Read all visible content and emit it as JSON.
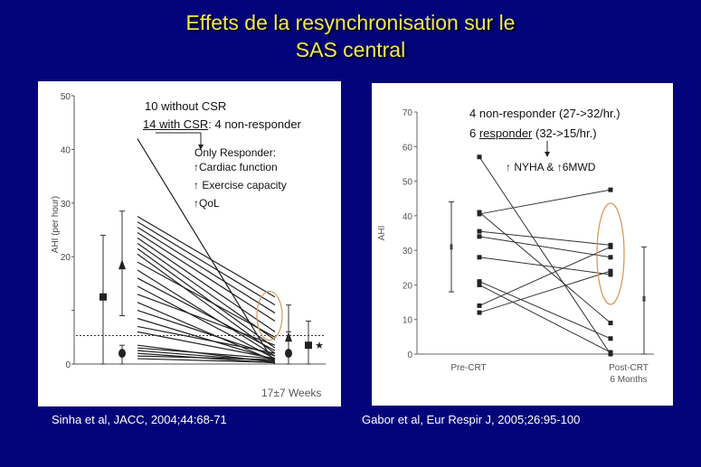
{
  "title_line1": "Effets de la resynchronisation sur le",
  "title_line2": "SAS central",
  "left": {
    "citation": "Sinha et al, JACC, 2004;44:68-71",
    "annotation": {
      "line1": "10 without CSR",
      "line2_underlined": "14 with CSR",
      "line2_rest": ": 4 non-responder",
      "only_responder": "Only Responder:",
      "items": [
        "Cardiac function",
        "Exercise capacity",
        "QoL"
      ],
      "arrow_glyph": "↑"
    },
    "footer": "17±7 Weeks",
    "colors": {
      "lines": "#222222",
      "highlight_ellipse": "#d89a5a"
    }
  },
  "right": {
    "citation": "Gabor et al, Eur Respir J, 2005;26:95-100",
    "annotation": {
      "line1": "4 non-responder (27->32/hr.)",
      "line2_prefix": "6 ",
      "line2_underlined": "responder",
      "line2_rest": " (32->15/hr.)",
      "benefit": "NYHA & ",
      "benefit2": "6MWD",
      "arrow_glyph": "↑"
    },
    "colors": {
      "lines": "#333333",
      "highlight_ellipse": "#d89a5a"
    }
  },
  "chart_data": [
    {
      "type": "line",
      "ylabel": "AHI (per hour)",
      "ylim": [
        0,
        50
      ],
      "yticks": [
        "50",
        "40",
        "30",
        "20",
        "",
        "0"
      ],
      "ytick_values": [
        50,
        40,
        30,
        20,
        10,
        0
      ],
      "reference_line": 5.3,
      "baseline_summary": [
        {
          "marker": "square",
          "value": 12.5,
          "low": 0,
          "high": 24
        },
        {
          "marker": "triangle",
          "value": 18.5,
          "low": 9,
          "high": 28.5
        },
        {
          "marker": "circle",
          "value": 2,
          "low": 0,
          "high": 3.5
        }
      ],
      "followup_summary": [
        {
          "marker": "triangle",
          "value": 5,
          "low": 0,
          "high": 11
        },
        {
          "marker": "circle",
          "value": 2,
          "low": 0,
          "high": 6
        },
        {
          "marker": "square",
          "value": 3.5,
          "low": 0,
          "high": 8
        },
        {
          "marker": "star",
          "value": 3.5
        }
      ],
      "series": [
        {
          "values": [
            42,
            0
          ]
        },
        {
          "values": [
            27.5,
            12.5
          ]
        },
        {
          "values": [
            26.5,
            11
          ]
        },
        {
          "values": [
            25.5,
            9.5
          ]
        },
        {
          "values": [
            24.5,
            8
          ]
        },
        {
          "values": [
            23.5,
            6
          ]
        },
        {
          "values": [
            22.5,
            4.5
          ]
        },
        {
          "values": [
            21.5,
            3
          ]
        },
        {
          "values": [
            20.5,
            2
          ]
        },
        {
          "values": [
            19,
            5
          ]
        },
        {
          "values": [
            17.5,
            1.5
          ]
        },
        {
          "values": [
            16,
            2.5
          ]
        },
        {
          "values": [
            14.5,
            1
          ]
        },
        {
          "values": [
            13,
            3.5
          ]
        },
        {
          "values": [
            11.5,
            0.5
          ]
        },
        {
          "values": [
            10,
            1.5
          ]
        },
        {
          "values": [
            8.5,
            0.8
          ]
        },
        {
          "values": [
            7,
            2
          ]
        },
        {
          "values": [
            6,
            1
          ]
        },
        {
          "values": [
            3.5,
            0.3
          ]
        },
        {
          "values": [
            3,
            1
          ]
        },
        {
          "values": [
            2.5,
            0.5
          ]
        },
        {
          "values": [
            2,
            0.2
          ]
        },
        {
          "values": [
            1.5,
            0.8
          ]
        },
        {
          "values": [
            1,
            0.3
          ]
        }
      ]
    },
    {
      "type": "line",
      "ylabel": "AHI",
      "ylim": [
        0,
        70
      ],
      "yticks": [
        "70",
        "60",
        "50",
        "40",
        "30",
        "20",
        "10",
        "0"
      ],
      "ytick_values": [
        70,
        60,
        50,
        40,
        30,
        20,
        10,
        0
      ],
      "categories": [
        "Pre-CRT",
        "Post-CRT\n6 Months"
      ],
      "category_labels": [
        "Pre-CRT",
        "Post-CRT",
        "6 Months"
      ],
      "pre_summary": {
        "value": 31,
        "low": 18,
        "high": 44
      },
      "post_summary": {
        "value": 16,
        "low": 0,
        "high": 31
      },
      "series": [
        {
          "values": [
            57,
            0
          ]
        },
        {
          "values": [
            41,
            9
          ]
        },
        {
          "values": [
            40.5,
            47.5
          ]
        },
        {
          "values": [
            35.5,
            31.5
          ]
        },
        {
          "values": [
            34,
            28
          ]
        },
        {
          "values": [
            28,
            23
          ]
        },
        {
          "values": [
            21,
            4.5
          ]
        },
        {
          "values": [
            20,
            0.5
          ]
        },
        {
          "values": [
            14,
            31
          ]
        },
        {
          "values": [
            12,
            24
          ]
        }
      ]
    }
  ]
}
